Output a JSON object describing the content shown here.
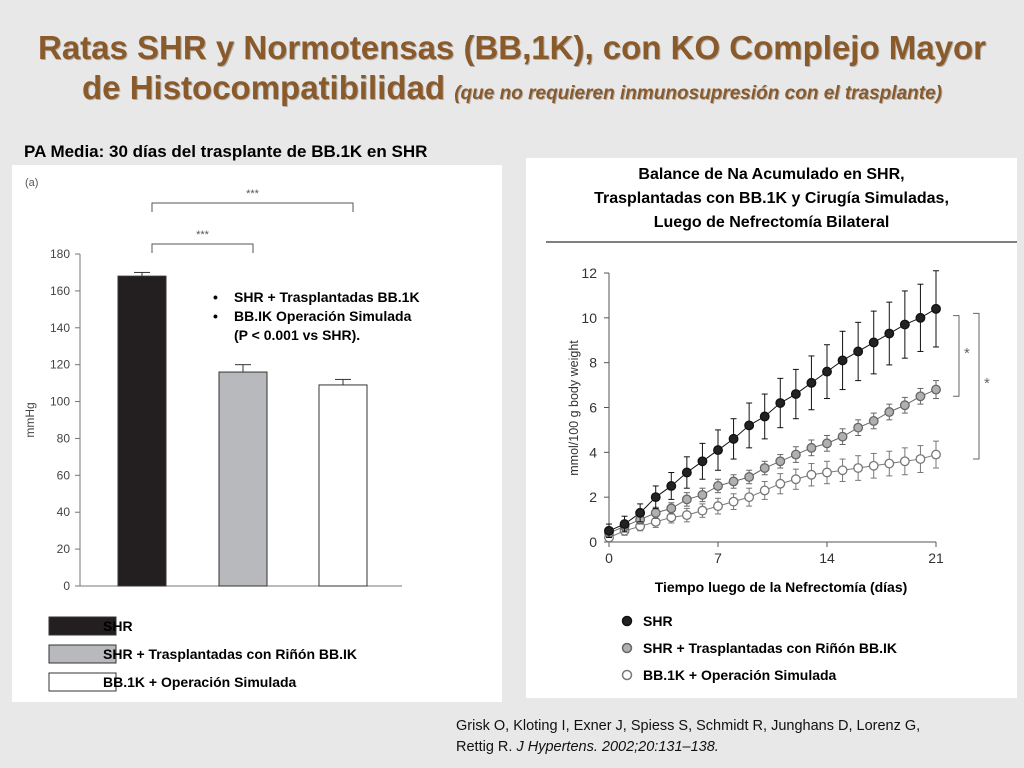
{
  "title": {
    "line1": "Ratas SHR y Normotensas (BB,1K), con KO Complejo Mayor",
    "line2_main": "de Histocompatibilidad",
    "line2_sub": "(que no requieren inmunosupresión con el trasplante)"
  },
  "left_heading": "PA Media: 30 días del trasplante de BB.1K en SHR",
  "right_title": [
    "Balance de Na Acumulado en SHR,",
    "Trasplantadas con BB.1K y Cirugía Simuladas,",
    "Luego de Nefrectomía Bilateral"
  ],
  "citation": {
    "line1": "Grisk O, Kloting I, Exner J, Spiess S, Schmidt R, Junghans D, Lorenz G,",
    "line2_plain": "Rettig R.",
    "line2_italic": "J Hypertens. 2002;20:131–138."
  },
  "chart_data": [
    {
      "type": "bar",
      "panel_label": "(a)",
      "categories": [
        "SHR",
        "SHR + Trasplantadas con Riñón BB.IK",
        "BB.1K + Operación Simulada"
      ],
      "values": [
        168,
        116,
        109
      ],
      "errors": [
        2,
        4,
        3
      ],
      "colors": [
        "#231f20",
        "#b8b9bd",
        "#ffffff"
      ],
      "ylabel": "mmHg",
      "ylim": [
        0,
        180
      ],
      "yticks": [
        0,
        20,
        40,
        60,
        80,
        100,
        120,
        140,
        160,
        180
      ],
      "significance": [
        {
          "from": 0,
          "to": 2,
          "label": "***"
        },
        {
          "from": 0,
          "to": 1,
          "label": "***"
        }
      ],
      "annotation": [
        {
          "bullet": "•",
          "text": "SHR + Trasplantadas BB.1K"
        },
        {
          "bullet": "•",
          "text": "BB.IK Operación Simulada"
        },
        {
          "bullet": "",
          "text": "(P < 0.001 vs SHR)."
        }
      ],
      "legend": [
        "SHR",
        "SHR + Trasplantadas con Riñón BB.IK",
        "BB.1K + Operación Simulada"
      ],
      "grid": false
    },
    {
      "type": "line",
      "xlabel": "Tiempo luego de la Nefrectomía (días)",
      "ylabel": "mmol/100 g body weight",
      "xlim": [
        0,
        21
      ],
      "ylim": [
        0,
        12
      ],
      "xticks": [
        0,
        7,
        14,
        21
      ],
      "yticks": [
        0,
        2,
        4,
        6,
        8,
        10,
        12
      ],
      "x": [
        0,
        1,
        2,
        3,
        4,
        5,
        6,
        7,
        8,
        9,
        10,
        11,
        12,
        13,
        14,
        15,
        16,
        17,
        18,
        19,
        20,
        21
      ],
      "series": [
        {
          "name": "SHR",
          "color": "#222222",
          "values": [
            0.5,
            0.8,
            1.3,
            2.0,
            2.5,
            3.1,
            3.6,
            4.1,
            4.6,
            5.2,
            5.6,
            6.2,
            6.6,
            7.1,
            7.6,
            8.1,
            8.5,
            8.9,
            9.3,
            9.7,
            10.0,
            10.4
          ],
          "errors": [
            0.3,
            0.35,
            0.4,
            0.5,
            0.6,
            0.7,
            0.8,
            0.9,
            0.9,
            1.0,
            1.0,
            1.1,
            1.1,
            1.2,
            1.2,
            1.3,
            1.3,
            1.4,
            1.4,
            1.5,
            1.5,
            1.7
          ]
        },
        {
          "name": "SHR + Trasplantadas con Riñón BB.IK",
          "color": "#b0b0b0",
          "values": [
            0.4,
            0.7,
            1.0,
            1.3,
            1.5,
            1.9,
            2.1,
            2.5,
            2.7,
            2.9,
            3.3,
            3.6,
            3.9,
            4.2,
            4.4,
            4.7,
            5.1,
            5.4,
            5.8,
            6.1,
            6.5,
            6.8
          ],
          "errors": [
            0.15,
            0.2,
            0.2,
            0.25,
            0.25,
            0.3,
            0.3,
            0.3,
            0.3,
            0.3,
            0.3,
            0.3,
            0.35,
            0.35,
            0.35,
            0.35,
            0.35,
            0.35,
            0.35,
            0.35,
            0.35,
            0.4
          ]
        },
        {
          "name": "BB.1K + Operación Simulada",
          "color": "#ffffff",
          "values": [
            0.2,
            0.5,
            0.7,
            0.9,
            1.1,
            1.2,
            1.4,
            1.6,
            1.8,
            2.0,
            2.3,
            2.6,
            2.8,
            3.0,
            3.1,
            3.2,
            3.3,
            3.4,
            3.5,
            3.6,
            3.7,
            3.9
          ],
          "errors": [
            0.15,
            0.2,
            0.2,
            0.25,
            0.25,
            0.3,
            0.3,
            0.35,
            0.35,
            0.4,
            0.4,
            0.45,
            0.45,
            0.5,
            0.5,
            0.5,
            0.55,
            0.55,
            0.55,
            0.6,
            0.6,
            0.6
          ]
        }
      ],
      "significance": [
        {
          "label": "*",
          "between": [
            0,
            1
          ]
        },
        {
          "label": "*",
          "between": [
            0,
            2
          ]
        }
      ],
      "legend": [
        "SHR",
        "SHR + Trasplantadas con Riñón BB.IK",
        "BB.1K + Operación Simulada"
      ],
      "grid": false
    }
  ]
}
